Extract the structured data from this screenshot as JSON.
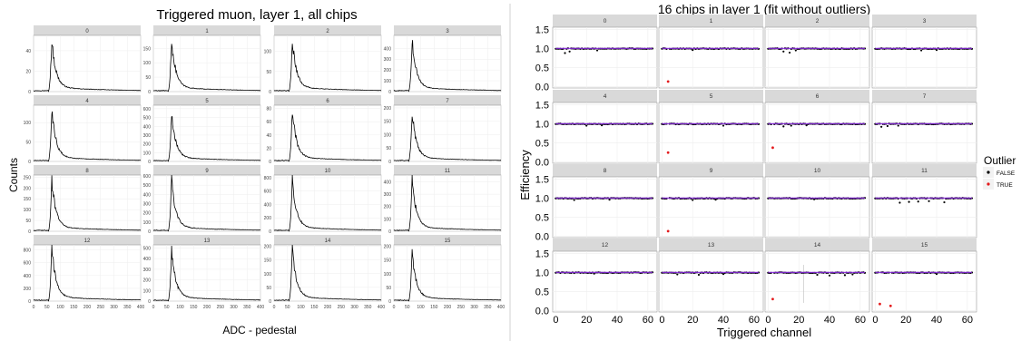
{
  "chart_data": [
    {
      "type": "line",
      "title": "Triggered muon, layer 1, all chips",
      "xlabel": "ADC - pedestal",
      "ylabel": "Counts",
      "xlim": [
        0,
        400
      ],
      "x_ticks": [
        0,
        50,
        100,
        150,
        200,
        250,
        300,
        350,
        400
      ],
      "grid": true,
      "facets": [
        {
          "label": "0",
          "peak": 50,
          "ylim": [
            0,
            55
          ],
          "y_ticks": [
            0,
            20,
            40
          ]
        },
        {
          "label": "1",
          "peak": 180,
          "ylim": [
            0,
            195
          ],
          "y_ticks": [
            0,
            50,
            100,
            150
          ]
        },
        {
          "label": "2",
          "peak": 130,
          "ylim": [
            0,
            140
          ],
          "y_ticks": [
            0,
            50,
            100
          ]
        },
        {
          "label": "3",
          "peak": 480,
          "ylim": [
            0,
            520
          ],
          "y_ticks": [
            0,
            100,
            200,
            300,
            400
          ]
        },
        {
          "label": "4",
          "peak": 135,
          "ylim": [
            0,
            145
          ],
          "y_ticks": [
            0,
            50,
            100
          ]
        },
        {
          "label": "5",
          "peak": 560,
          "ylim": [
            0,
            640
          ],
          "y_ticks": [
            0,
            100,
            200,
            300,
            400,
            500,
            600
          ]
        },
        {
          "label": "6",
          "peak": 78,
          "ylim": [
            0,
            85
          ],
          "y_ticks": [
            0,
            20,
            40,
            60,
            80
          ]
        },
        {
          "label": "7",
          "peak": 185,
          "ylim": [
            0,
            210
          ],
          "y_ticks": [
            0,
            50,
            100,
            150,
            200
          ]
        },
        {
          "label": "8",
          "peak": 235,
          "ylim": [
            0,
            260
          ],
          "y_ticks": [
            0,
            50,
            100,
            150,
            200,
            250
          ]
        },
        {
          "label": "9",
          "peak": 560,
          "ylim": [
            0,
            610
          ],
          "y_ticks": [
            0,
            100,
            200,
            300,
            400,
            500,
            600
          ]
        },
        {
          "label": "10",
          "peak": 780,
          "ylim": [
            0,
            840
          ],
          "y_ticks": [
            0,
            200,
            400,
            600,
            800
          ]
        },
        {
          "label": "11",
          "peak": 420,
          "ylim": [
            0,
            455
          ],
          "y_ticks": [
            0,
            100,
            200,
            300,
            400
          ]
        },
        {
          "label": "12",
          "peak": 830,
          "ylim": [
            0,
            880
          ],
          "y_ticks": [
            0,
            200,
            400,
            600,
            800
          ]
        },
        {
          "label": "13",
          "peak": 480,
          "ylim": [
            0,
            530
          ],
          "y_ticks": [
            0,
            100,
            200,
            300,
            400,
            500
          ]
        },
        {
          "label": "14",
          "peak": 190,
          "ylim": [
            0,
            205
          ],
          "y_ticks": [
            0,
            50,
            100,
            150,
            200
          ]
        },
        {
          "label": "15",
          "peak": 175,
          "ylim": [
            0,
            205
          ],
          "y_ticks": [
            0,
            50,
            100,
            150,
            200
          ]
        }
      ]
    },
    {
      "type": "scatter",
      "title": "16 chips in layer 1 (fit without outliers)",
      "xlabel": "Triggered channel",
      "ylabel": "Efficiency",
      "xlim": [
        -2,
        66
      ],
      "ylim": [
        -0.04,
        1.56
      ],
      "x_ticks": [
        0,
        20,
        40,
        60
      ],
      "y_ticks": [
        "0.0",
        "0.5",
        "1.0",
        "1.5"
      ],
      "grid": true,
      "legend": {
        "title": "Outlier",
        "placement": "right",
        "entries": [
          {
            "label": "FALSE",
            "color": "#000000"
          },
          {
            "label": "TRUE",
            "color": "#e41a1c"
          }
        ]
      },
      "fit_line": {
        "y": 1.0,
        "color": "#8a2be2"
      },
      "facets": [
        {
          "label": "0",
          "dips": [
            [
              6,
              0.88
            ],
            [
              9,
              0.92
            ],
            [
              27,
              0.95
            ]
          ],
          "outliers": []
        },
        {
          "label": "1",
          "dips": [
            [
              20,
              0.96
            ]
          ],
          "outliers": [
            [
              4,
              0.13
            ]
          ]
        },
        {
          "label": "2",
          "dips": [
            [
              10,
              0.92
            ],
            [
              14,
              0.89
            ],
            [
              18,
              0.95
            ]
          ],
          "outliers": []
        },
        {
          "label": "3",
          "dips": [
            [
              30,
              0.95
            ],
            [
              40,
              0.96
            ]
          ],
          "outliers": []
        },
        {
          "label": "4",
          "dips": [
            [
              20,
              0.95
            ],
            [
              30,
              0.96
            ]
          ],
          "outliers": []
        },
        {
          "label": "5",
          "dips": [
            [
              40,
              0.95
            ]
          ],
          "outliers": [
            [
              4,
              0.24
            ]
          ]
        },
        {
          "label": "6",
          "dips": [
            [
              10,
              0.93
            ],
            [
              15,
              0.95
            ],
            [
              25,
              0.96
            ]
          ],
          "outliers": [
            [
              3,
              0.37
            ]
          ]
        },
        {
          "label": "7",
          "dips": [
            [
              4,
              0.92
            ],
            [
              8,
              0.94
            ],
            [
              15,
              0.95
            ]
          ],
          "outliers": []
        },
        {
          "label": "8",
          "dips": [
            [
              12,
              0.95
            ],
            [
              35,
              0.96
            ]
          ],
          "outliers": []
        },
        {
          "label": "9",
          "dips": [
            [
              20,
              0.95
            ],
            [
              35,
              0.96
            ]
          ],
          "outliers": [
            [
              4,
              0.13
            ]
          ]
        },
        {
          "label": "10",
          "dips": [
            [
              30,
              0.97
            ]
          ],
          "outliers": []
        },
        {
          "label": "11",
          "dips": [
            [
              16,
              0.88
            ],
            [
              22,
              0.9
            ],
            [
              28,
              0.91
            ],
            [
              35,
              0.92
            ],
            [
              45,
              0.89
            ]
          ],
          "outliers": []
        },
        {
          "label": "12",
          "dips": [
            [
              25,
              0.97
            ]
          ],
          "outliers": []
        },
        {
          "label": "13",
          "dips": [
            [
              10,
              0.95
            ],
            [
              24,
              0.94
            ],
            [
              40,
              0.96
            ]
          ],
          "outliers": []
        },
        {
          "label": "14",
          "dips": [
            [
              32,
              0.94
            ],
            [
              40,
              0.92
            ],
            [
              50,
              0.93
            ],
            [
              55,
              0.95
            ]
          ],
          "outliers": [
            [
              3,
              0.3
            ]
          ]
        },
        {
          "label": "15",
          "dips": [
            [
              10,
              0.95
            ],
            [
              40,
              0.96
            ]
          ],
          "outliers": [
            [
              3,
              0.17
            ],
            [
              10,
              0.12
            ]
          ]
        }
      ]
    }
  ]
}
